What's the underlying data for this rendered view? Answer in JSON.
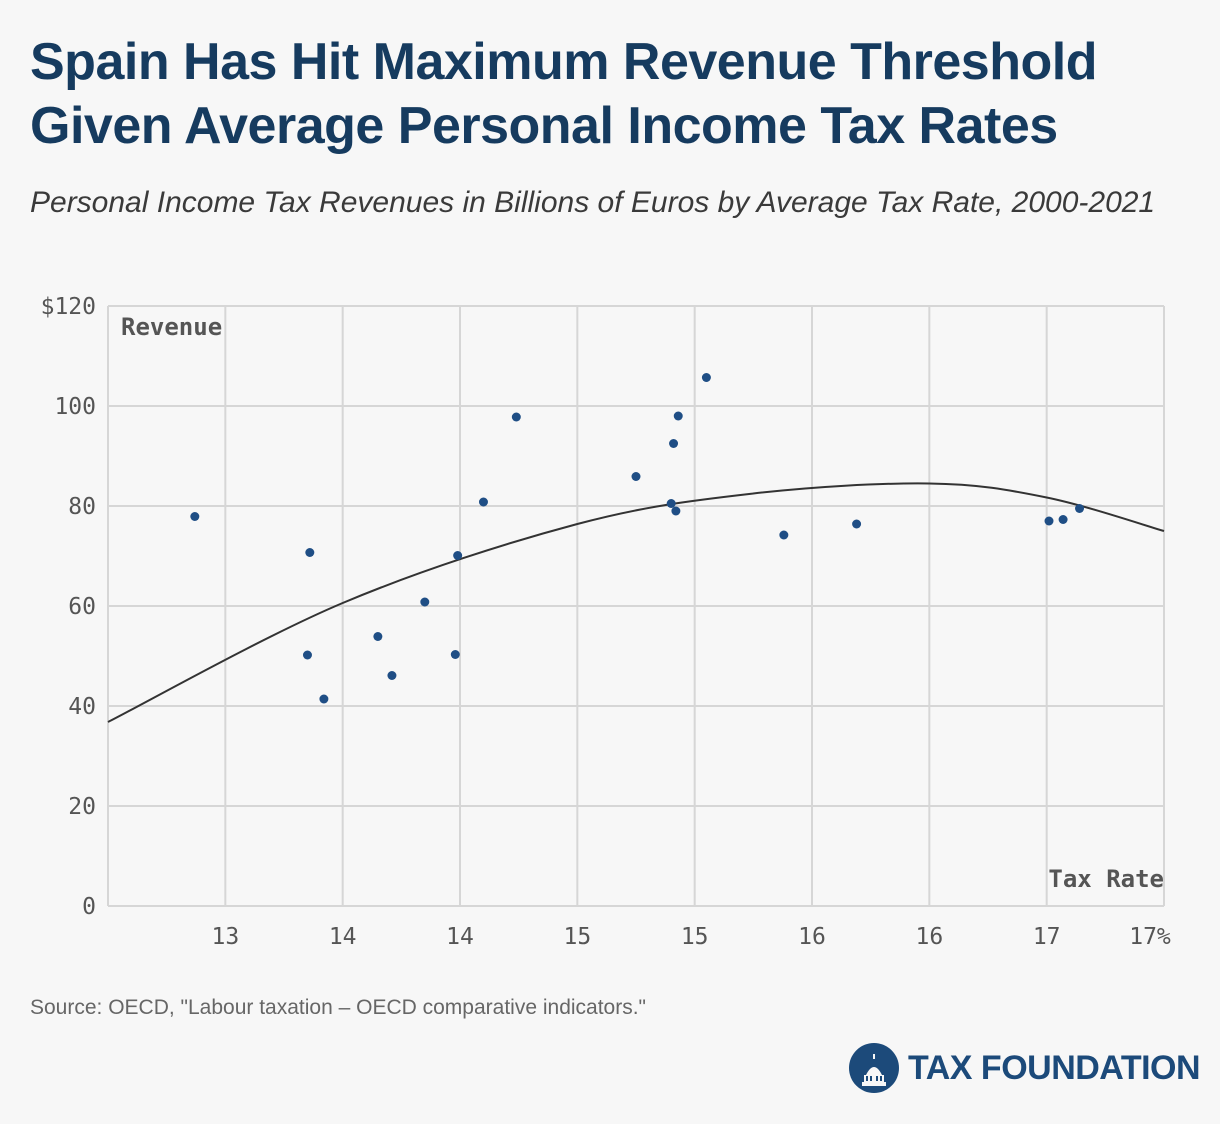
{
  "header": {
    "title": "Spain Has Hit Maximum Revenue Threshold Given Average Personal Income Tax Rates",
    "subtitle": "Personal Income Tax Revenues in Billions of Euros by Average Tax Rate, 2000-2021"
  },
  "chart_data": {
    "type": "scatter",
    "title": "Spain Has Hit Maximum Revenue Threshold Given Average Personal Income Tax Rates",
    "subtitle": "Personal Income Tax Revenues in Billions of Euros by Average Tax Rate, 2000-2021",
    "xlabel": "Tax Rate",
    "ylabel": "Revenue",
    "xlim": [
      12.5,
      17.0
    ],
    "ylim": [
      0,
      120
    ],
    "grid": true,
    "x_ticks": [
      13.0,
      13.5,
      14.0,
      14.5,
      15.0,
      15.5,
      16.0,
      16.5,
      17.0
    ],
    "x_tick_labels": [
      "13",
      "14",
      "14",
      "15",
      "15",
      "16",
      "16",
      "17",
      "17%"
    ],
    "y_ticks": [
      0,
      20,
      40,
      60,
      80,
      100,
      120
    ],
    "y_tick_labels": [
      "0",
      "20",
      "40",
      "60",
      "80",
      "100",
      "$120"
    ],
    "series": [
      {
        "color": "#1f4e85",
        "points": [
          {
            "x": 12.87,
            "y": 77.9
          },
          {
            "x": 13.36,
            "y": 70.7
          },
          {
            "x": 13.35,
            "y": 50.2
          },
          {
            "x": 13.42,
            "y": 41.4
          },
          {
            "x": 13.65,
            "y": 53.9
          },
          {
            "x": 13.71,
            "y": 46.1
          },
          {
            "x": 13.85,
            "y": 60.8
          },
          {
            "x": 13.98,
            "y": 50.3
          },
          {
            "x": 13.99,
            "y": 70.1
          },
          {
            "x": 14.1,
            "y": 80.8
          },
          {
            "x": 14.24,
            "y": 97.8
          },
          {
            "x": 14.75,
            "y": 85.9
          },
          {
            "x": 14.9,
            "y": 80.5
          },
          {
            "x": 14.91,
            "y": 92.5
          },
          {
            "x": 14.92,
            "y": 79.0
          },
          {
            "x": 14.93,
            "y": 98.0
          },
          {
            "x": 15.05,
            "y": 105.7
          },
          {
            "x": 15.38,
            "y": 74.2
          },
          {
            "x": 15.69,
            "y": 76.4
          },
          {
            "x": 16.51,
            "y": 77.0
          },
          {
            "x": 16.57,
            "y": 77.3
          },
          {
            "x": 16.64,
            "y": 79.5
          }
        ]
      }
    ],
    "trendline": {
      "type": "quadratic",
      "points": [
        [
          12.5,
          36.8
        ],
        [
          13.5,
          60.6
        ],
        [
          14.5,
          76.4
        ],
        [
          15.25,
          82.5
        ],
        [
          16.0,
          84.5
        ],
        [
          16.5,
          81.7
        ],
        [
          17.0,
          75.0
        ]
      ]
    }
  },
  "footer": {
    "source": "Source: OECD, \"Labour taxation – OECD comparative indicators.\"",
    "logo_text": "TAX FOUNDATION",
    "brand_color": "#1c4a7a"
  }
}
